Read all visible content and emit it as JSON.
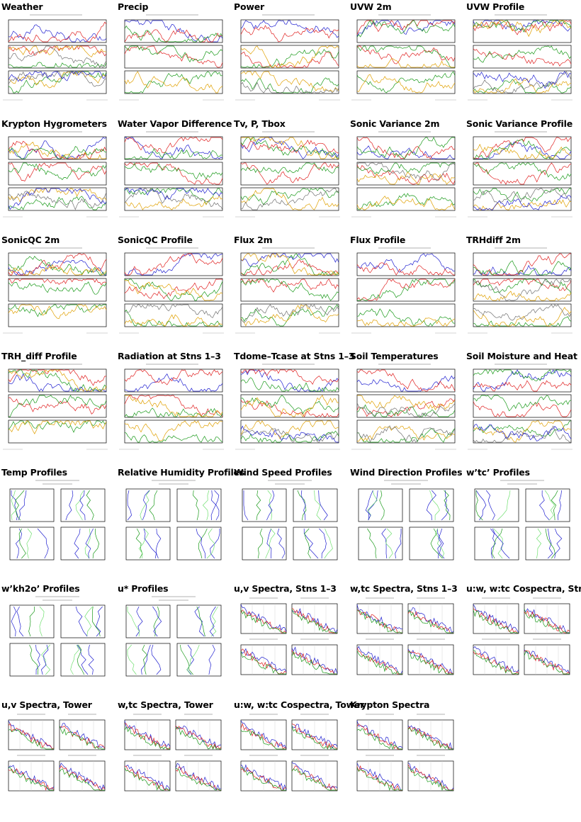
{
  "rows": [
    [
      "Weather",
      "Precip",
      "Power",
      "UVW 2m",
      "UVW Profile"
    ],
    [
      "Krypton Hygrometers",
      "Water Vapor Difference",
      "Tv, P, Tbox",
      "Sonic Variance 2m",
      "Sonic Variance Profile"
    ],
    [
      "SonicQC 2m",
      "SonicQC Profile",
      "Flux 2m",
      "Flux Profile",
      "TRHdiff 2m"
    ],
    [
      "TRH_diff Profile",
      "Radiation at Stns 1–3",
      "Tdome–Tcase at Stns 1–3",
      "Soil Temperatures",
      "Soil Moisture and Heat Flux"
    ],
    [
      "Temp Profiles",
      "Relative Humidity Profiles",
      "Wind Speed Profiles",
      "Wind Direction Profiles",
      "w’tc’ Profiles"
    ],
    [
      "w’kh2o’ Profiles",
      "u* Profiles",
      "u,v Spectra, Stns 1–3",
      "w,tc Spectra, Stns 1–3",
      "u:w, w:tc Cospectra, Stns"
    ],
    [
      "u,v Spectra, Tower",
      "w,tc Spectra, Tower",
      "u:w, w:tc Cospectra, Tower",
      "Krypton Spectra"
    ]
  ],
  "kinds": [
    [
      "ts",
      "ts",
      "ts",
      "ts",
      "ts"
    ],
    [
      "ts",
      "ts",
      "ts",
      "ts",
      "ts"
    ],
    [
      "ts",
      "ts",
      "ts",
      "ts",
      "ts"
    ],
    [
      "ts",
      "ts",
      "ts",
      "ts",
      "ts"
    ],
    [
      "prof",
      "prof",
      "prof",
      "prof",
      "prof"
    ],
    [
      "prof",
      "prof",
      "spec",
      "spec",
      "spec"
    ],
    [
      "spec",
      "spec",
      "spec",
      "spec"
    ]
  ],
  "colors": {
    "red": "#e02020",
    "green": "#1a9a1a",
    "blue": "#2020d0",
    "orange": "#e0a000",
    "lightgreen": "#70e070",
    "grey": "#707070",
    "frame": "#000000"
  }
}
